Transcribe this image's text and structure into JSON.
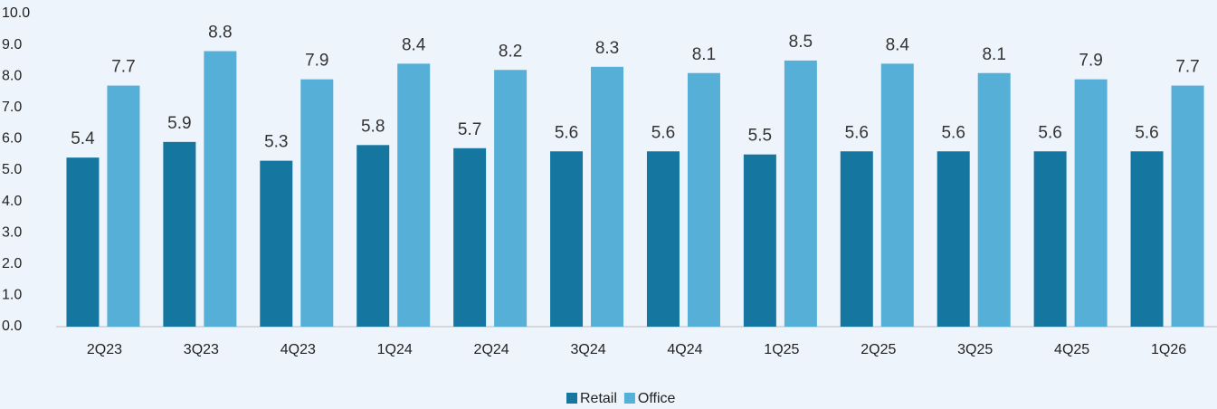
{
  "chart_data": {
    "type": "bar",
    "categories": [
      "2Q23",
      "3Q23",
      "4Q23",
      "1Q24",
      "2Q24",
      "3Q24",
      "4Q24",
      "1Q25",
      "2Q25",
      "3Q25",
      "4Q25",
      "1Q26"
    ],
    "series": [
      {
        "name": "Retail",
        "color": "#1577a0",
        "values": [
          5.4,
          5.9,
          5.3,
          5.8,
          5.7,
          5.6,
          5.6,
          5.5,
          5.6,
          5.6,
          5.6,
          5.6
        ]
      },
      {
        "name": "Office",
        "color": "#55afd6",
        "values": [
          7.7,
          8.8,
          7.9,
          8.4,
          8.2,
          8.3,
          8.1,
          8.5,
          8.4,
          8.1,
          7.9,
          7.7
        ]
      }
    ],
    "ylim": [
      0,
      10
    ],
    "yticks": [
      {
        "value": 0,
        "label": "0.0"
      },
      {
        "value": 1,
        "label": "1.0"
      },
      {
        "value": 2,
        "label": "2.0"
      },
      {
        "value": 3,
        "label": "3.0"
      },
      {
        "value": 4,
        "label": "4.0"
      },
      {
        "value": 5,
        "label": "5.0"
      },
      {
        "value": 6,
        "label": "6.0"
      },
      {
        "value": 7,
        "label": "7.0"
      },
      {
        "value": 8,
        "label": "8.0"
      },
      {
        "value": 9,
        "label": "9.0"
      },
      {
        "value": 10,
        "label": "10.0"
      }
    ],
    "grid": false,
    "legend": "bottom"
  }
}
